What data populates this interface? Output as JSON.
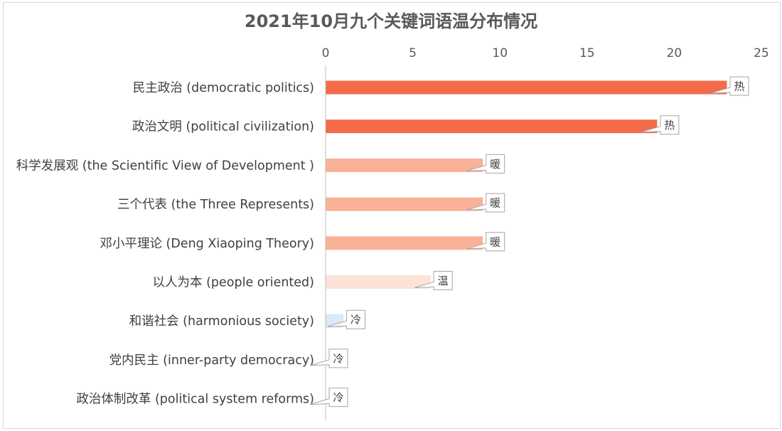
{
  "chart_data": {
    "type": "bar",
    "orientation": "horizontal",
    "title": "2021年10月九个关键词语温分布情况",
    "xlabel": "",
    "ylabel": "",
    "xlim": [
      0,
      25
    ],
    "x_ticks": [
      0,
      5,
      10,
      15,
      20,
      25
    ],
    "x_axis_position": "top",
    "grid": false,
    "categories": [
      "民主政治 (democratic politics)",
      "政治文明 (political civilization)",
      "科学发展观 (the Scientific View of Development )",
      "三个代表 (the Three Represents)",
      "邓小平理论 (Deng Xiaoping Theory)",
      "以人为本 (people oriented)",
      "和谐社会 (harmonious society)",
      "党内民主 (inner-party democracy)",
      "政治体制改革 (political system reforms)"
    ],
    "values": [
      23,
      19,
      9,
      9,
      9,
      6,
      1,
      0,
      0
    ],
    "data_labels": [
      "热",
      "热",
      "暖",
      "暖",
      "暖",
      "温",
      "冷",
      "冷",
      "冷"
    ],
    "colors": [
      "#f36b4a",
      "#f36b4a",
      "#f9b197",
      "#f9b197",
      "#f9b197",
      "#fde2d8",
      "#dbe8f5",
      "#dbe8f5",
      "#dbe8f5"
    ]
  }
}
